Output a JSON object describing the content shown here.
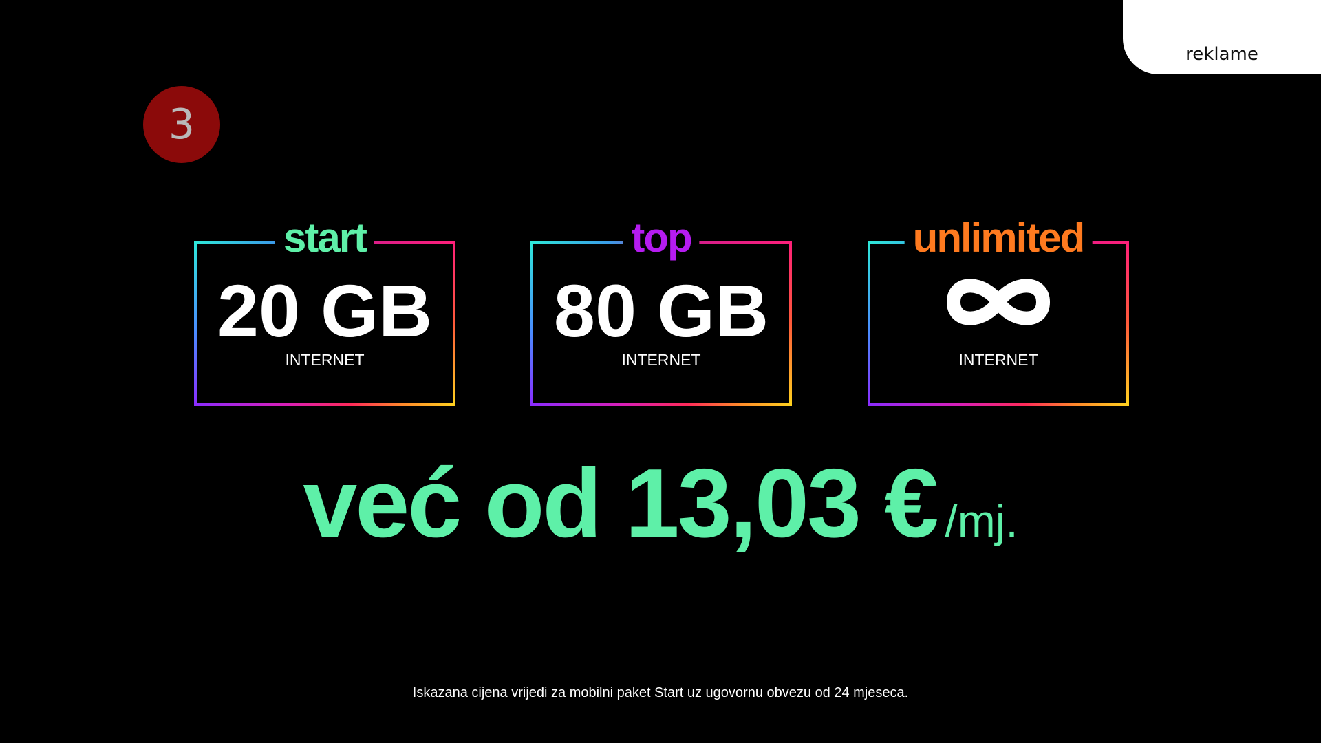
{
  "corner_tab": {
    "label": "reklame"
  },
  "badge": {
    "number": "3",
    "color": "#8b0a0a"
  },
  "plans": [
    {
      "name": "start",
      "color": "#5ef0a8",
      "amount": "20 GB",
      "label": "INTERNET"
    },
    {
      "name": "top",
      "color": "#b51cf0",
      "amount": "80 GB",
      "label": "INTERNET"
    },
    {
      "name": "unlimited",
      "color": "#ff7a1f",
      "amount_icon": "infinity-icon",
      "label": "INTERNET"
    }
  ],
  "price": {
    "text": "već od 13,03 €",
    "unit": "/mj.",
    "color": "#5ef0a8"
  },
  "footnote": "Iskazana cijena vrijedi za mobilni paket Start uz ugovornu obvezu od 24 mjeseca."
}
